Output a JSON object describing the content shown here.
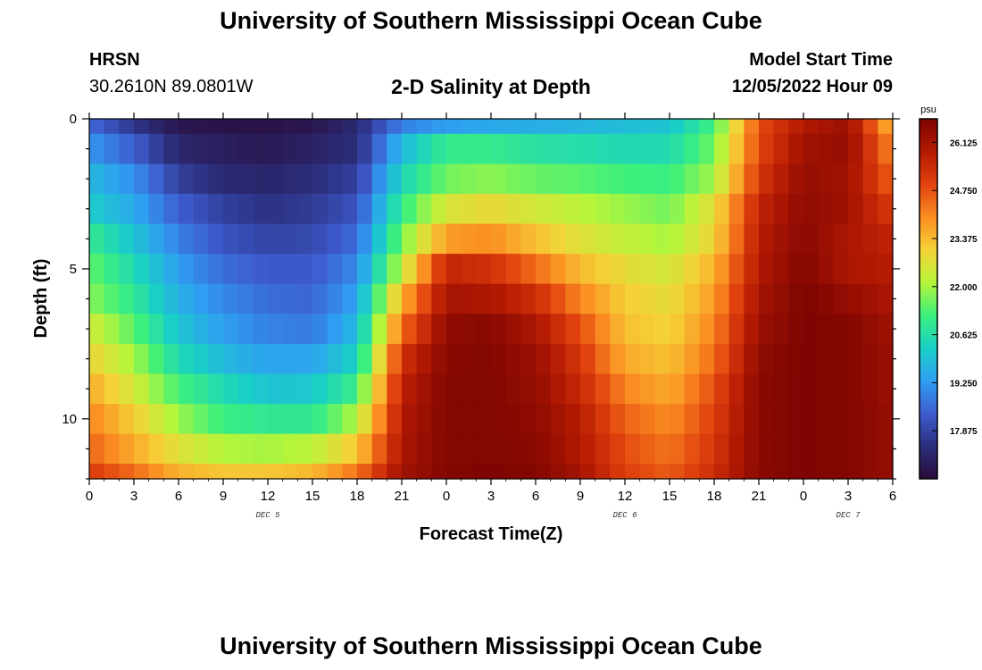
{
  "header": {
    "title": "University of Southern Mississippi Ocean Cube",
    "station": "HRSN",
    "coords": "30.2610N  89.0801W",
    "plot_title": "2-D Salinity at Depth",
    "model_start_label": "Model Start Time",
    "model_start_value": "12/05/2022 Hour 09"
  },
  "footer": {
    "title": "University of Southern Mississippi Ocean Cube"
  },
  "colors": {
    "colormap": [
      "#2a0b3a",
      "#2b2f7c",
      "#3e5ccf",
      "#2f9ff2",
      "#19d0c6",
      "#3cf07c",
      "#b6f53a",
      "#f5d237",
      "#fb8e22",
      "#e1420e",
      "#b41a03",
      "#7d0502"
    ]
  },
  "chart_data": {
    "type": "heatmap",
    "title": "2-D Salinity at Depth",
    "xlabel": "Forecast Time(Z)",
    "ylabel": "Depth (ft)",
    "x_hours_from_dec5_00z": [
      0,
      3,
      6,
      9,
      12,
      15,
      18,
      21,
      24,
      27,
      30,
      33,
      36,
      39,
      42,
      45,
      48,
      51,
      54
    ],
    "x_tick_labels": [
      "0",
      "3",
      "6",
      "9",
      "12",
      "15",
      "18",
      "21",
      "0",
      "3",
      "6",
      "9",
      "12",
      "15",
      "18",
      "21",
      "0",
      "3",
      "6"
    ],
    "xlim_hours": [
      0,
      54
    ],
    "day_labels": [
      {
        "label": "DEC 5",
        "hour": 12
      },
      {
        "label": "DEC 6",
        "hour": 36
      },
      {
        "label": "DEC 7",
        "hour": 51
      }
    ],
    "ylim": [
      0,
      12
    ],
    "y_ticks": [
      0,
      5,
      10
    ],
    "depths_ft": [
      0,
      0.5,
      1.5,
      2.5,
      3.5,
      4.5,
      5.5,
      6.5,
      7.5,
      8.5,
      9.5,
      10.5,
      11.5
    ],
    "depth_layer_edges_ft": [
      0,
      0.5,
      1.5,
      2.5,
      3.5,
      4.5,
      5.5,
      6.5,
      7.5,
      8.5,
      9.5,
      10.5,
      11.5,
      12
    ],
    "colorbar": {
      "unit": "psu",
      "min": 16.5,
      "max": 26.8,
      "tick_values": [
        17.875,
        19.25,
        20.625,
        22.0,
        23.375,
        24.75,
        26.125
      ],
      "tick_labels": [
        "17.875",
        "19.250",
        "20.625",
        "22.000",
        "23.375",
        "24.750",
        "26.125"
      ]
    },
    "salinity_psu": [
      [
        18.6,
        17.6,
        16.8,
        16.7,
        16.7,
        16.8,
        17.3,
        18.9,
        19.3,
        19.5,
        19.6,
        19.7,
        19.9,
        20.0,
        21.2,
        24.8,
        25.9,
        26.3,
        23.3
      ],
      [
        19.2,
        18.4,
        17.2,
        17.0,
        16.9,
        17.1,
        17.4,
        19.8,
        21.0,
        21.0,
        20.7,
        20.6,
        20.5,
        20.5,
        21.6,
        24.9,
        26.2,
        26.4,
        24.0
      ],
      [
        19.8,
        19.1,
        17.8,
        17.3,
        17.2,
        17.4,
        17.8,
        20.4,
        21.6,
        21.8,
        21.5,
        21.4,
        21.2,
        21.1,
        22.0,
        25.2,
        26.4,
        26.2,
        24.5
      ],
      [
        20.2,
        19.5,
        18.4,
        17.8,
        17.5,
        17.7,
        18.2,
        21.0,
        22.6,
        22.9,
        22.5,
        22.2,
        21.9,
        21.6,
        22.8,
        25.6,
        26.5,
        26.2,
        25.1
      ],
      [
        21.0,
        20.0,
        18.9,
        18.2,
        17.9,
        18.0,
        18.6,
        21.6,
        23.8,
        24.0,
        23.3,
        22.7,
        22.3,
        22.0,
        23.0,
        25.8,
        26.6,
        26.0,
        25.6
      ],
      [
        21.5,
        20.5,
        19.3,
        18.6,
        18.3,
        18.3,
        19.0,
        22.3,
        25.6,
        25.3,
        24.4,
        23.4,
        22.8,
        22.5,
        23.5,
        25.9,
        26.7,
        26.0,
        25.8
      ],
      [
        21.8,
        20.9,
        19.6,
        19.0,
        18.6,
        18.5,
        19.4,
        23.5,
        26.1,
        26.0,
        25.4,
        24.1,
        23.1,
        22.8,
        23.8,
        26.1,
        26.8,
        26.4,
        26.0
      ],
      [
        22.5,
        21.4,
        20.0,
        19.3,
        18.9,
        18.8,
        19.8,
        24.4,
        26.5,
        26.6,
        26.0,
        24.8,
        23.3,
        23.0,
        24.1,
        26.3,
        26.8,
        26.7,
        26.2
      ],
      [
        23.0,
        22.0,
        20.5,
        19.8,
        19.4,
        19.4,
        20.3,
        25.3,
        26.6,
        26.7,
        26.3,
        25.2,
        23.6,
        23.3,
        24.4,
        26.5,
        26.8,
        26.7,
        26.3
      ],
      [
        23.6,
        22.5,
        21.2,
        20.5,
        20.0,
        20.1,
        21.1,
        25.7,
        26.7,
        26.7,
        26.4,
        25.5,
        24.1,
        23.6,
        24.8,
        26.6,
        26.8,
        26.7,
        26.3
      ],
      [
        24.1,
        23.1,
        21.9,
        21.1,
        20.9,
        20.9,
        22.1,
        25.9,
        26.7,
        26.7,
        26.5,
        25.8,
        24.5,
        24.0,
        25.0,
        26.6,
        26.8,
        26.7,
        26.4
      ],
      [
        24.5,
        23.6,
        22.7,
        22.1,
        22.0,
        22.2,
        23.2,
        26.0,
        26.7,
        26.7,
        26.6,
        25.9,
        24.8,
        24.3,
        25.2,
        26.6,
        26.8,
        26.7,
        26.4
      ],
      [
        25.1,
        24.4,
        23.5,
        23.2,
        23.2,
        23.4,
        24.3,
        26.2,
        26.7,
        26.8,
        26.7,
        26.1,
        25.0,
        24.6,
        25.4,
        26.6,
        26.8,
        26.7,
        26.4
      ]
    ]
  }
}
